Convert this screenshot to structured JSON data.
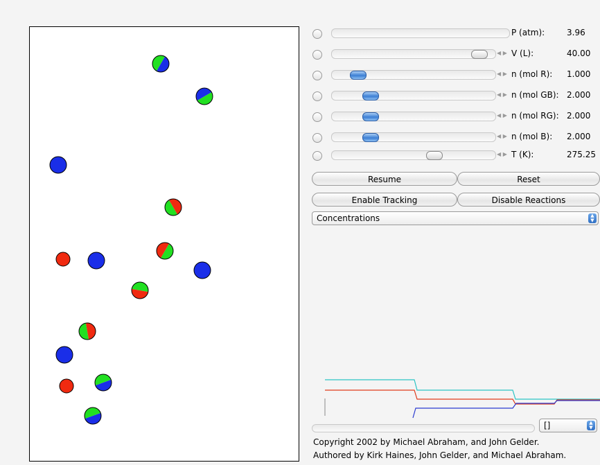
{
  "controls": [
    {
      "label": "P (atm):",
      "value": "3.96"
    },
    {
      "label": "V (L):",
      "value": "40.00"
    },
    {
      "label": "n (mol R):",
      "value": "1.000"
    },
    {
      "label": "n (mol GB):",
      "value": "2.000"
    },
    {
      "label": "n (mol RG):",
      "value": "2.000"
    },
    {
      "label": "n (mol B):",
      "value": "2.000"
    },
    {
      "label": "T (K):",
      "value": "275.25"
    }
  ],
  "buttons": [
    "Resume",
    "Reset",
    "Enable Tracking",
    "Disable Reactions"
  ],
  "dropdown": "Concentrations",
  "graph_select": "[]",
  "copyright": [
    "Copyright 2002 by Michael Abraham, and John Gelder.",
    "Authored by Kirk Haines, John Gelder, and Michael Abraham."
  ]
}
